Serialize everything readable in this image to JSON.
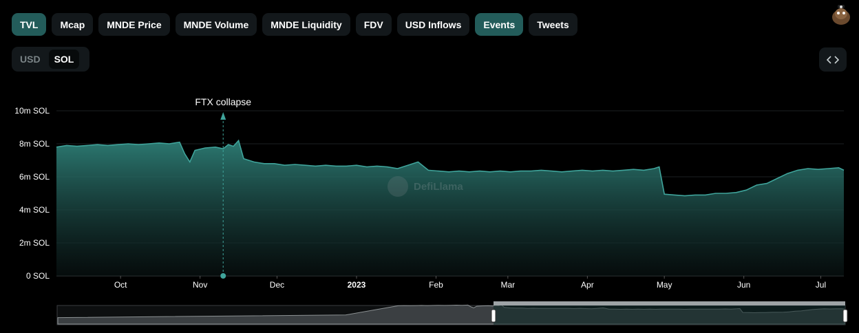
{
  "tabs": [
    {
      "label": "TVL",
      "active": true
    },
    {
      "label": "Mcap",
      "active": false
    },
    {
      "label": "MNDE Price",
      "active": false
    },
    {
      "label": "MNDE Volume",
      "active": false
    },
    {
      "label": "MNDE Liquidity",
      "active": false
    },
    {
      "label": "FDV",
      "active": false
    },
    {
      "label": "USD Inflows",
      "active": false
    },
    {
      "label": "Events",
      "active": true
    },
    {
      "label": "Tweets",
      "active": false
    }
  ],
  "currency_toggle": {
    "options": [
      "USD",
      "SOL"
    ],
    "selected": "SOL"
  },
  "watermark": "DefiLlama",
  "colors": {
    "accent": "#3fa49b",
    "tab_active": "#235c5a",
    "tab_bg": "#13181b",
    "background": "#000000"
  },
  "chart_data": {
    "type": "area",
    "y_ticks": [
      "0 SOL",
      "2m SOL",
      "4m SOL",
      "6m SOL",
      "8m SOL",
      "10m SOL"
    ],
    "ylim": [
      0,
      10
    ],
    "y_unit": "m SOL",
    "x_ticks": [
      "Oct",
      "Nov",
      "Dec",
      "2023",
      "Feb",
      "Mar",
      "Apr",
      "May",
      "Jun",
      "Jul"
    ],
    "xlim": [
      "2022-09-06",
      "2023-07-10"
    ],
    "grid": true,
    "series": [
      {
        "x": [
          "2022-09-06",
          "2022-09-10",
          "2022-09-14",
          "2022-09-18",
          "2022-09-22",
          "2022-09-26",
          "2022-09-30",
          "2022-10-04",
          "2022-10-08",
          "2022-10-12",
          "2022-10-16",
          "2022-10-20",
          "2022-10-24",
          "2022-10-26",
          "2022-10-28",
          "2022-10-30",
          "2022-11-03",
          "2022-11-07",
          "2022-11-10",
          "2022-11-12",
          "2022-11-14",
          "2022-11-16",
          "2022-11-18",
          "2022-11-22",
          "2022-11-26",
          "2022-11-30",
          "2022-12-04",
          "2022-12-08",
          "2022-12-12",
          "2022-12-16",
          "2022-12-20",
          "2022-12-24",
          "2022-12-28",
          "2023-01-01",
          "2023-01-05",
          "2023-01-09",
          "2023-01-13",
          "2023-01-17",
          "2023-01-21",
          "2023-01-25",
          "2023-01-29",
          "2023-02-02",
          "2023-02-06",
          "2023-02-10",
          "2023-02-14",
          "2023-02-18",
          "2023-02-22",
          "2023-02-26",
          "2023-03-02",
          "2023-03-06",
          "2023-03-10",
          "2023-03-14",
          "2023-03-18",
          "2023-03-22",
          "2023-03-26",
          "2023-03-30",
          "2023-04-03",
          "2023-04-07",
          "2023-04-11",
          "2023-04-15",
          "2023-04-19",
          "2023-04-23",
          "2023-04-27",
          "2023-04-29",
          "2023-05-01",
          "2023-05-05",
          "2023-05-09",
          "2023-05-13",
          "2023-05-17",
          "2023-05-21",
          "2023-05-25",
          "2023-05-29",
          "2023-06-02",
          "2023-06-06",
          "2023-06-10",
          "2023-06-14",
          "2023-06-18",
          "2023-06-22",
          "2023-06-26",
          "2023-06-30",
          "2023-07-04",
          "2023-07-08",
          "2023-07-10"
        ],
        "y": [
          7.8,
          7.9,
          7.85,
          7.9,
          7.95,
          7.9,
          7.95,
          8.0,
          7.95,
          8.0,
          8.05,
          8.0,
          8.1,
          7.4,
          6.9,
          7.6,
          7.75,
          7.8,
          7.7,
          7.95,
          7.85,
          8.2,
          7.1,
          6.9,
          6.8,
          6.8,
          6.7,
          6.75,
          6.7,
          6.65,
          6.7,
          6.65,
          6.65,
          6.7,
          6.6,
          6.65,
          6.6,
          6.5,
          6.7,
          6.9,
          6.4,
          6.35,
          6.3,
          6.35,
          6.3,
          6.35,
          6.3,
          6.35,
          6.3,
          6.35,
          6.35,
          6.4,
          6.35,
          6.3,
          6.35,
          6.4,
          6.35,
          6.4,
          6.35,
          6.4,
          6.45,
          6.4,
          6.5,
          6.6,
          4.95,
          4.9,
          4.85,
          4.9,
          4.9,
          5.0,
          5.0,
          5.05,
          5.2,
          5.5,
          5.6,
          5.9,
          6.2,
          6.4,
          6.5,
          6.45,
          6.5,
          6.55,
          6.4
        ]
      }
    ],
    "annotations": [
      {
        "label": "FTX collapse",
        "x": "2022-11-10"
      }
    ]
  }
}
